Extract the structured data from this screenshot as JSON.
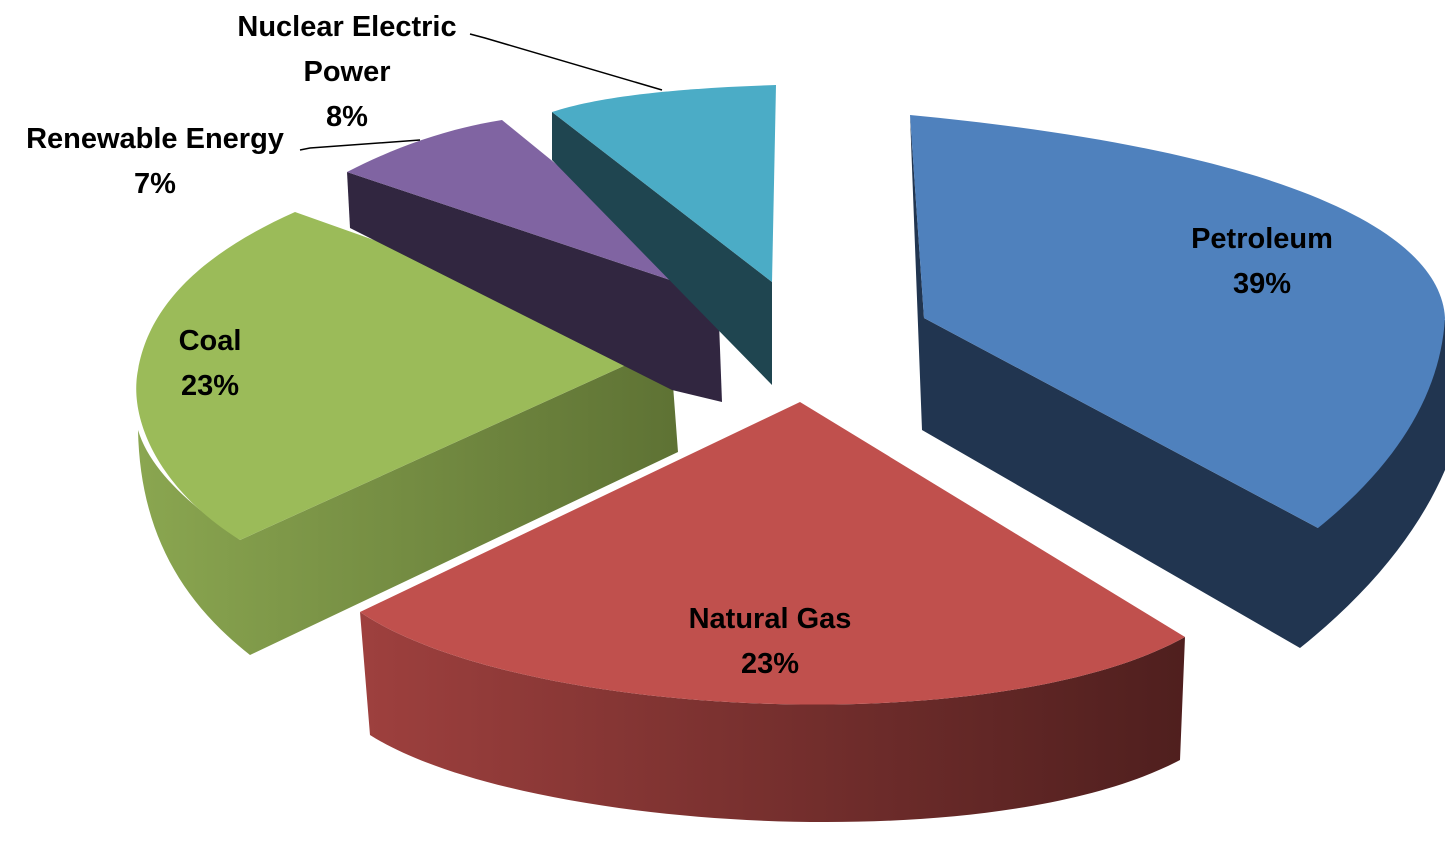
{
  "chart_data": {
    "type": "pie",
    "title": "",
    "categories": [
      "Petroleum",
      "Natural Gas",
      "Coal",
      "Renewable Energy",
      "Nuclear Electric Power"
    ],
    "values": [
      39,
      23,
      23,
      7,
      8
    ],
    "value_labels": [
      "39%",
      "23%",
      "23%",
      "7%",
      "8%"
    ],
    "colors": [
      "#4F81BD",
      "#C0504D",
      "#9BBB59",
      "#8064A2",
      "#4BACC6"
    ],
    "style": "3d-exploded",
    "legend": "none"
  }
}
